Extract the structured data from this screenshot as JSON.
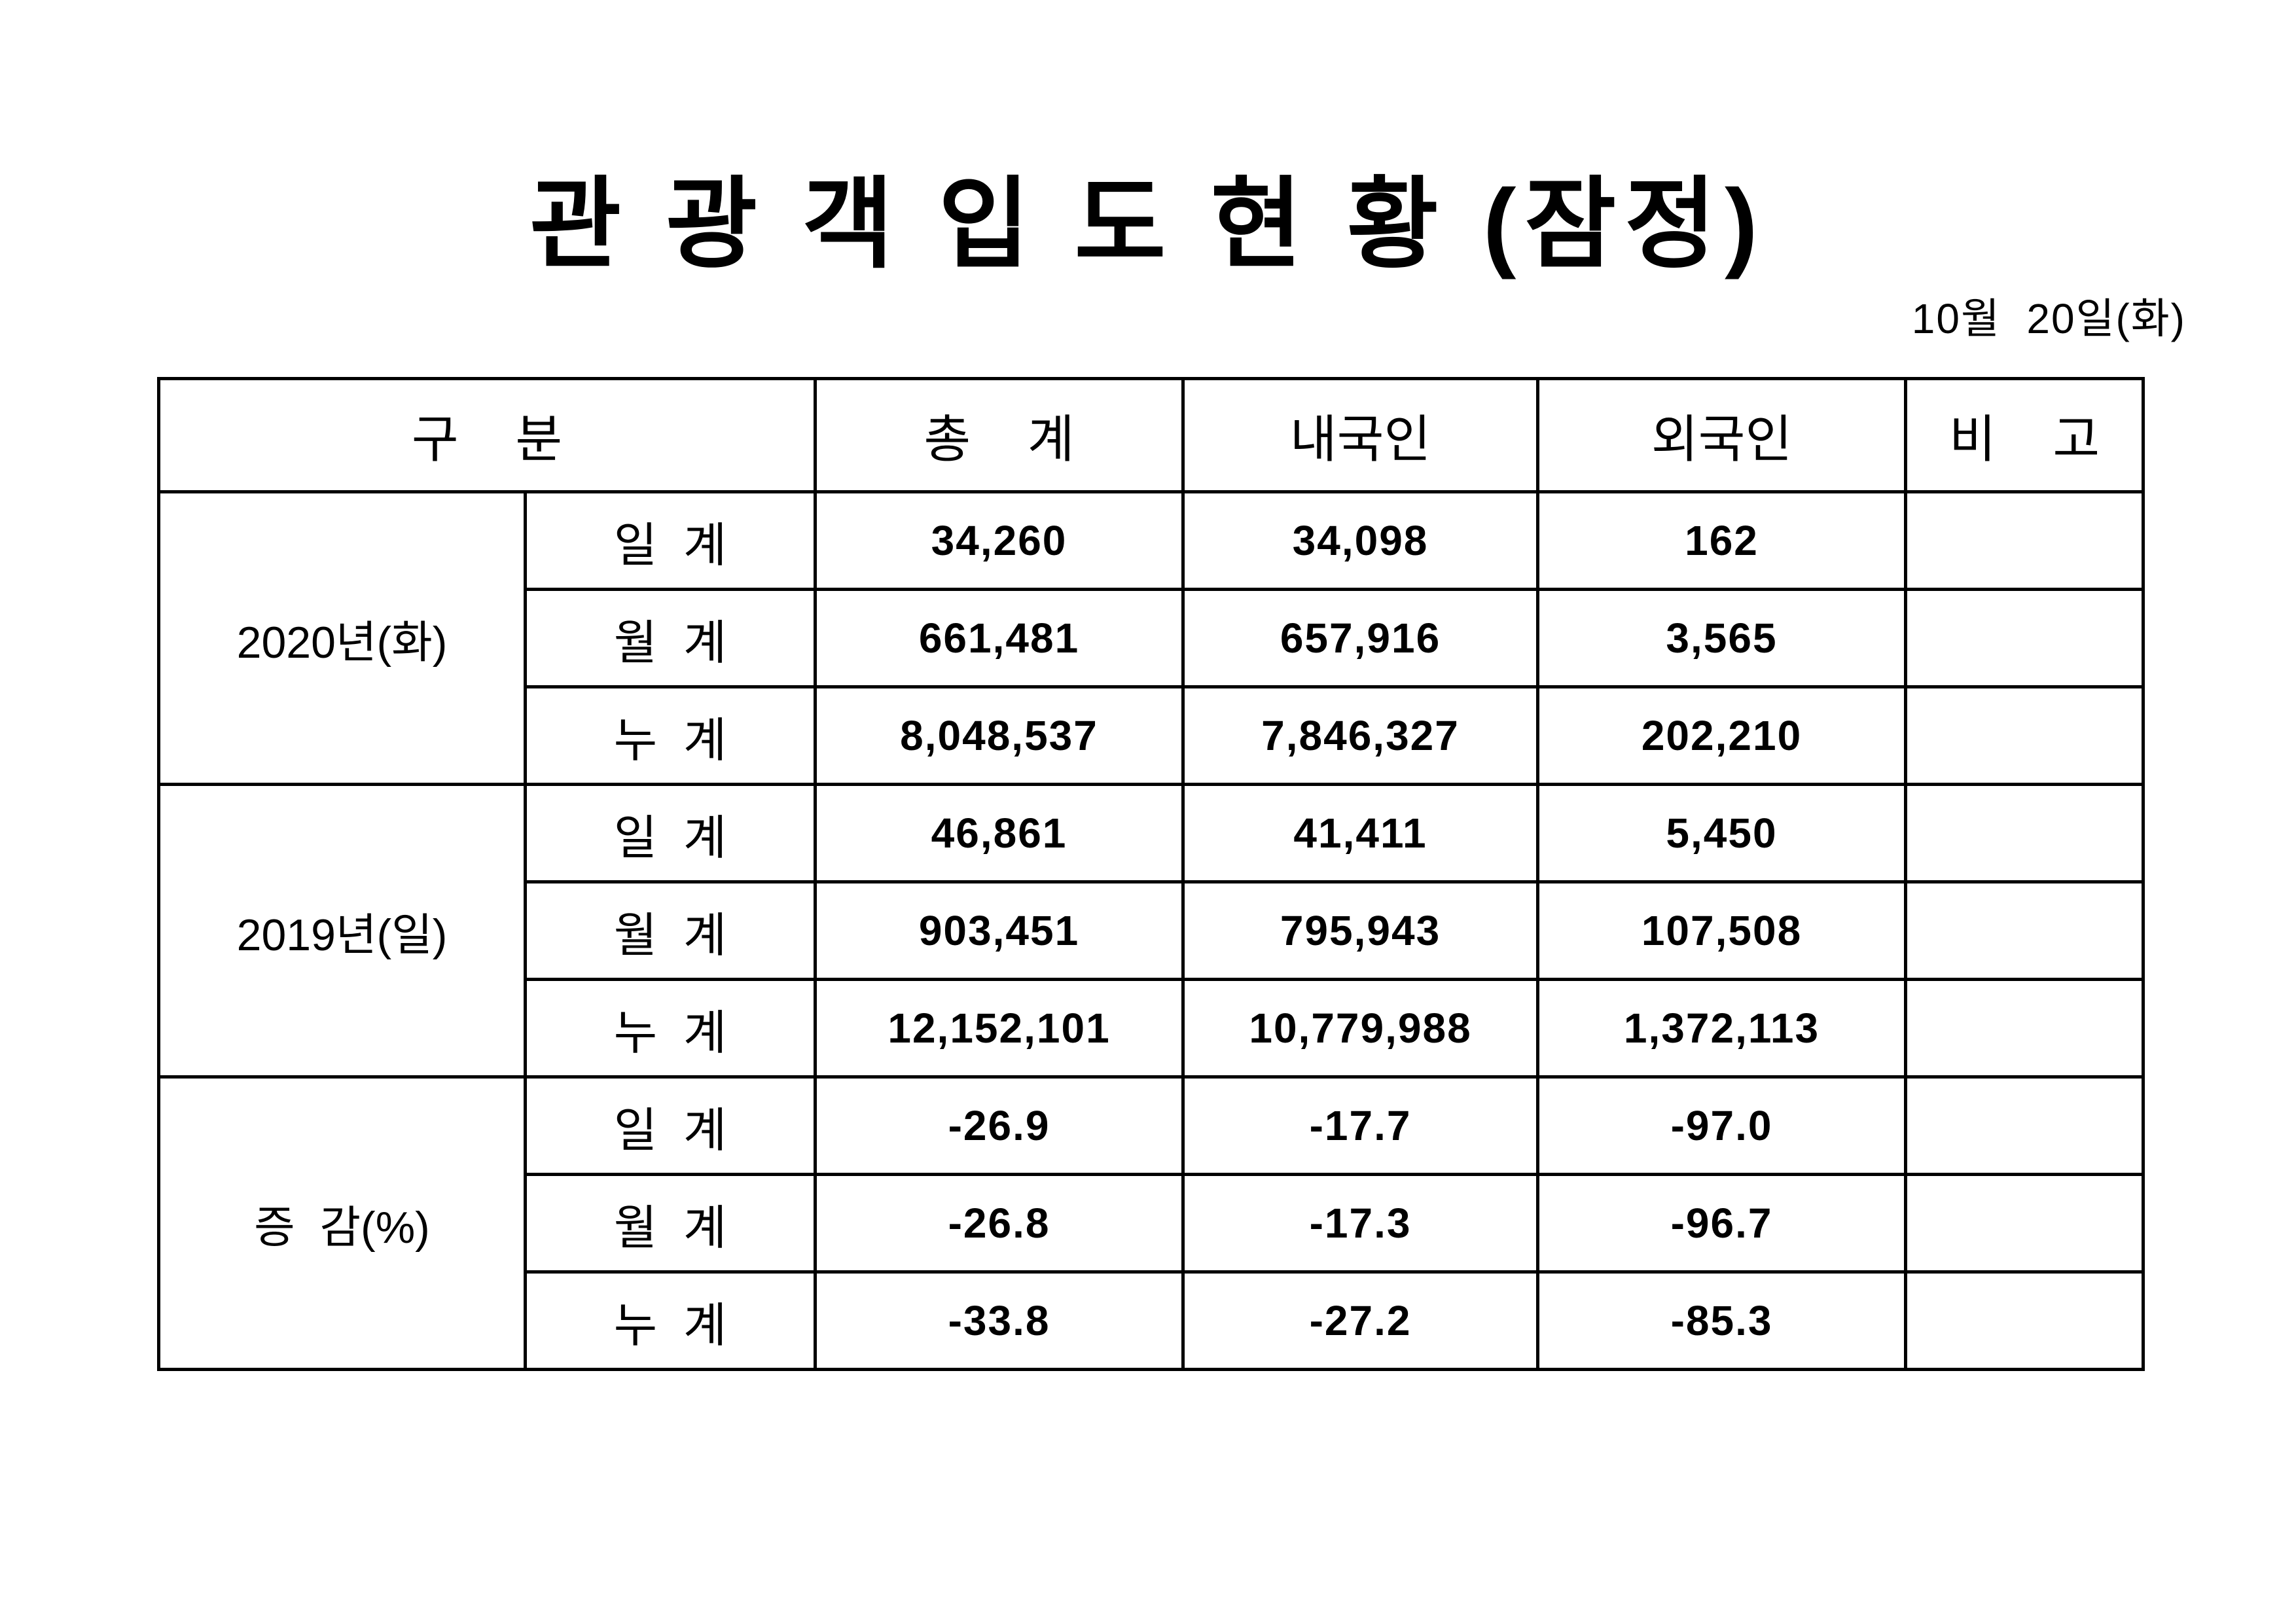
{
  "title": "관 광 객 입 도 현 황 (잠정)",
  "date": "10월  20일(화)",
  "table": {
    "headers": {
      "category": "구    분",
      "total": "총    계",
      "domestic": "내국인",
      "foreign": "외국인",
      "remarks": "비    고"
    },
    "sections": [
      {
        "label": "2020년(화)",
        "rows": [
          {
            "sub": "일  계",
            "total": "34,260",
            "domestic": "34,098",
            "foreign": "162"
          },
          {
            "sub": "월  계",
            "total": "661,481",
            "domestic": "657,916",
            "foreign": "3,565"
          },
          {
            "sub": "누  계",
            "total": "8,048,537",
            "domestic": "7,846,327",
            "foreign": "202,210"
          }
        ]
      },
      {
        "label": "2019년(일)",
        "rows": [
          {
            "sub": "일  계",
            "total": "46,861",
            "domestic": "41,411",
            "foreign": "5,450"
          },
          {
            "sub": "월  계",
            "total": "903,451",
            "domestic": "795,943",
            "foreign": "107,508"
          },
          {
            "sub": "누  계",
            "total": "12,152,101",
            "domestic": "10,779,988",
            "foreign": "1,372,113"
          }
        ]
      },
      {
        "label": "증  감(%)",
        "rows": [
          {
            "sub": "일  계",
            "total": "-26.9",
            "domestic": "-17.7",
            "foreign": "-97.0"
          },
          {
            "sub": "월  계",
            "total": "-26.8",
            "domestic": "-17.3",
            "foreign": "-96.7"
          },
          {
            "sub": "누  계",
            "total": "-33.8",
            "domestic": "-27.2",
            "foreign": "-85.3"
          }
        ]
      }
    ]
  }
}
